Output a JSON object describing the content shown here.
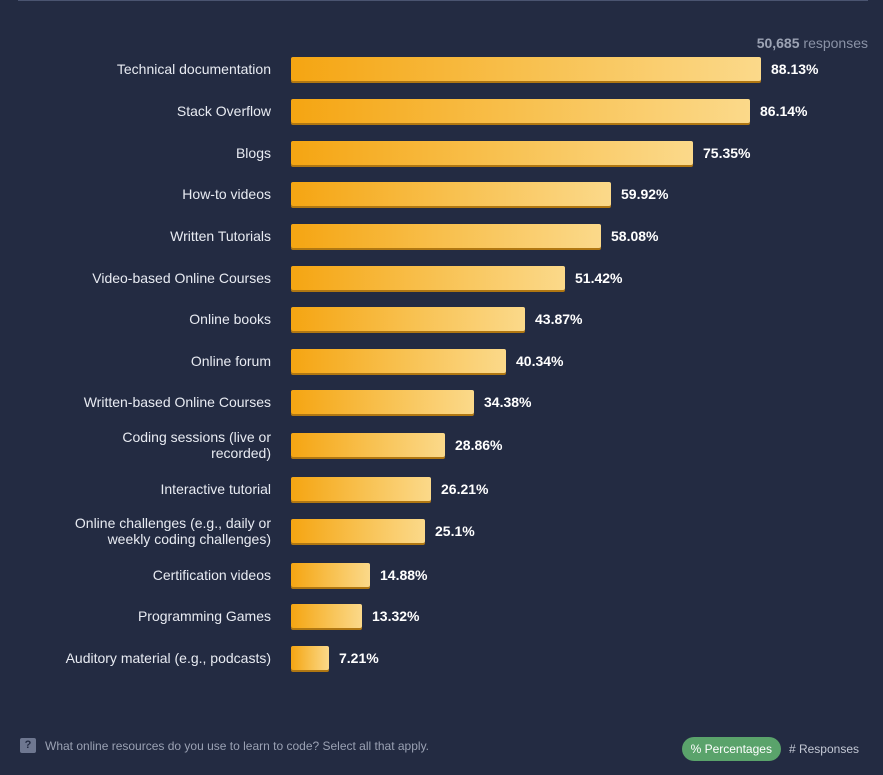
{
  "header": {
    "response_count": "50,685",
    "response_word": "responses"
  },
  "chart_data": {
    "type": "bar",
    "orientation": "horizontal",
    "categories": [
      "Technical documentation",
      "Stack Overflow",
      "Blogs",
      "How-to videos",
      "Written Tutorials",
      "Video-based Online Courses",
      "Online books",
      "Online forum",
      "Written-based Online Courses",
      "Coding sessions (live or recorded)",
      "Interactive tutorial",
      "Online challenges (e.g., daily or weekly coding challenges)",
      "Certification videos",
      "Programming Games",
      "Auditory material (e.g., podcasts)"
    ],
    "category_lines": [
      [
        "Technical documentation"
      ],
      [
        "Stack Overflow"
      ],
      [
        "Blogs"
      ],
      [
        "How-to videos"
      ],
      [
        "Written Tutorials"
      ],
      [
        "Video-based Online Courses"
      ],
      [
        "Online books"
      ],
      [
        "Online forum"
      ],
      [
        "Written-based Online Courses"
      ],
      [
        "Coding sessions (live or",
        "recorded)"
      ],
      [
        "Interactive tutorial"
      ],
      [
        "Online challenges (e.g., daily or",
        "weekly coding challenges)"
      ],
      [
        "Certification videos"
      ],
      [
        "Programming Games"
      ],
      [
        "Auditory material (e.g., podcasts)"
      ]
    ],
    "values": [
      88.13,
      86.14,
      75.35,
      59.92,
      58.08,
      51.42,
      43.87,
      40.34,
      34.38,
      28.86,
      26.21,
      25.1,
      14.88,
      13.32,
      7.21
    ],
    "value_labels": [
      "88.13%",
      "86.14%",
      "75.35%",
      "59.92%",
      "58.08%",
      "51.42%",
      "43.87%",
      "40.34%",
      "34.38%",
      "28.86%",
      "26.21%",
      "25.1%",
      "14.88%",
      "13.32%",
      "7.21%"
    ],
    "xlim": [
      0,
      88.13
    ],
    "bar_color": "#f5a512",
    "bar_color_end": "#fbd98a",
    "legend": "none",
    "grid": false
  },
  "footer": {
    "question": "What online resources do you use to learn to code? Select all that apply.",
    "help_icon": "?",
    "toggle_percentages": "% Percentages",
    "toggle_responses": "# Responses",
    "active_color": "#5aa36b"
  }
}
